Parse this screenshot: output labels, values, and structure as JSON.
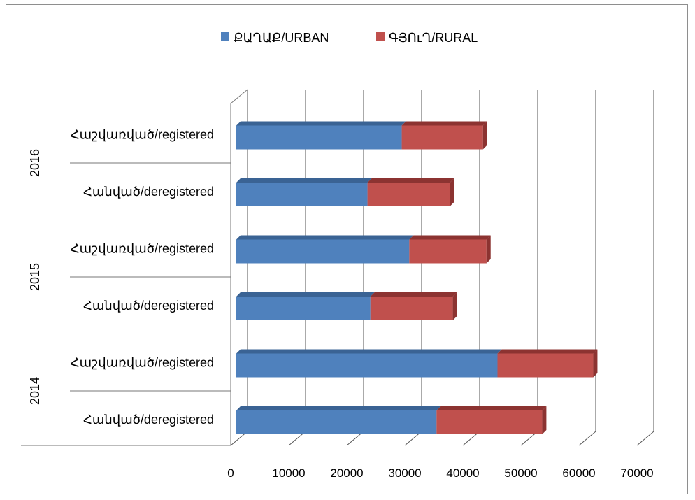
{
  "chart_data": {
    "type": "bar",
    "orientation": "horizontal",
    "stacked": true,
    "three_d": true,
    "groups": [
      {
        "year": "2016",
        "categories": [
          "Հաշվառված/registered",
          "Հանված/deregistered"
        ]
      },
      {
        "year": "2015",
        "categories": [
          "Հաշվառված/registered",
          "Հանված/deregistered"
        ]
      },
      {
        "year": "2014",
        "categories": [
          "Հաշվառված/registered",
          "Հանված/deregistered"
        ]
      }
    ],
    "series": [
      {
        "name": "ՔԱՂԱՔ/URBAN",
        "color": "#4f81bd",
        "side_color": "#3a6394",
        "values": [
          28500,
          22600,
          29800,
          23100,
          45000,
          34500
        ]
      },
      {
        "name": "ԳՅՈւՂ/RURAL",
        "color": "#c0504d",
        "side_color": "#8c3331",
        "values": [
          14000,
          14200,
          13300,
          14200,
          16500,
          18200
        ]
      }
    ],
    "xlim": [
      0,
      70000
    ],
    "xticks": [
      "0",
      "10000",
      "20000",
      "30000",
      "40000",
      "50000",
      "60000",
      "70000"
    ],
    "grid": true,
    "legend_position": "top"
  }
}
